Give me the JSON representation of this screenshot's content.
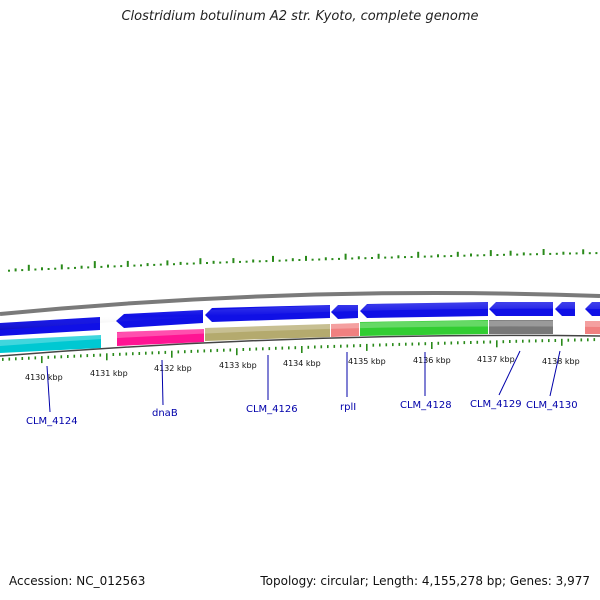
{
  "title": "Clostridium botulinum A2 str. Kyoto, complete genome",
  "footer": {
    "accession": "Accession: NC_012563",
    "summary": "Topology: circular; Length: 4,155,278 bp; Genes: 3,977"
  },
  "colors": {
    "backbone": "#808080",
    "gc_marks": "#2a8a1a",
    "forward_genes": "#1010e6",
    "label_lines": "#0000aa"
  },
  "scale_labels": [
    "4130 kbp",
    "4131 kbp",
    "4132 kbp",
    "4133 kbp",
    "4134 kbp",
    "4135 kbp",
    "4136 kbp",
    "4137 kbp",
    "4138 kbp"
  ],
  "gene_labels": [
    "CLM_4124",
    "dnaB",
    "CLM_4126",
    "rplI",
    "CLM_4128",
    "CLM_4129",
    "CLM_4130"
  ],
  "cog_colors": [
    "#00c8d2",
    "#ff1493",
    "#b4aa6e",
    "#f08080",
    "#32cd32",
    "#787878",
    "#f08080"
  ]
}
